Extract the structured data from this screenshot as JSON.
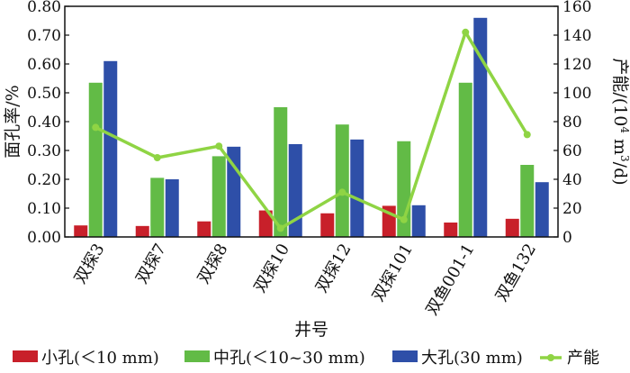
{
  "chart_data": {
    "type": "bar",
    "categories": [
      "双探3",
      "双探7",
      "双探8",
      "双探10",
      "双探12",
      "双探101",
      "双鱼001-1",
      "双鱼132"
    ],
    "series": [
      {
        "name": "小孔(＜10 mm)",
        "axis": "left",
        "color": "#c8202a",
        "values": [
          0.04,
          0.038,
          0.054,
          0.092,
          0.082,
          0.108,
          0.05,
          0.063
        ]
      },
      {
        "name": "中孔(＜10~30 mm)",
        "axis": "left",
        "color": "#62bb46",
        "values": [
          0.535,
          0.205,
          0.28,
          0.45,
          0.39,
          0.332,
          0.535,
          0.25
        ]
      },
      {
        "name": "大孔(30 mm)",
        "axis": "left",
        "color": "#2e4fa8",
        "values": [
          0.61,
          0.2,
          0.313,
          0.322,
          0.338,
          0.11,
          0.76,
          0.19
        ]
      },
      {
        "name": "产能",
        "axis": "right",
        "type": "line",
        "color": "#8fd444",
        "values": [
          76,
          55,
          63,
          6,
          31,
          12,
          142,
          71
        ]
      }
    ],
    "ylabel": "面孔率/%",
    "y2label": "产能/(10⁴ m³/d)",
    "y2label_parts": {
      "prefix": "产能/(10",
      "exp1": "4",
      "mid": " m",
      "exp2": "3",
      "suffix": "/d)"
    },
    "xlabel": "井号",
    "ylim": [
      0,
      0.8
    ],
    "y2lim": [
      0,
      160
    ],
    "yticks": [
      "0.00",
      "0.10",
      "0.20",
      "0.30",
      "0.40",
      "0.50",
      "0.60",
      "0.70",
      "0.80"
    ],
    "y2ticks": [
      "0",
      "20",
      "40",
      "60",
      "80",
      "100",
      "120",
      "140",
      "160"
    ],
    "legend_position": "bottom"
  }
}
